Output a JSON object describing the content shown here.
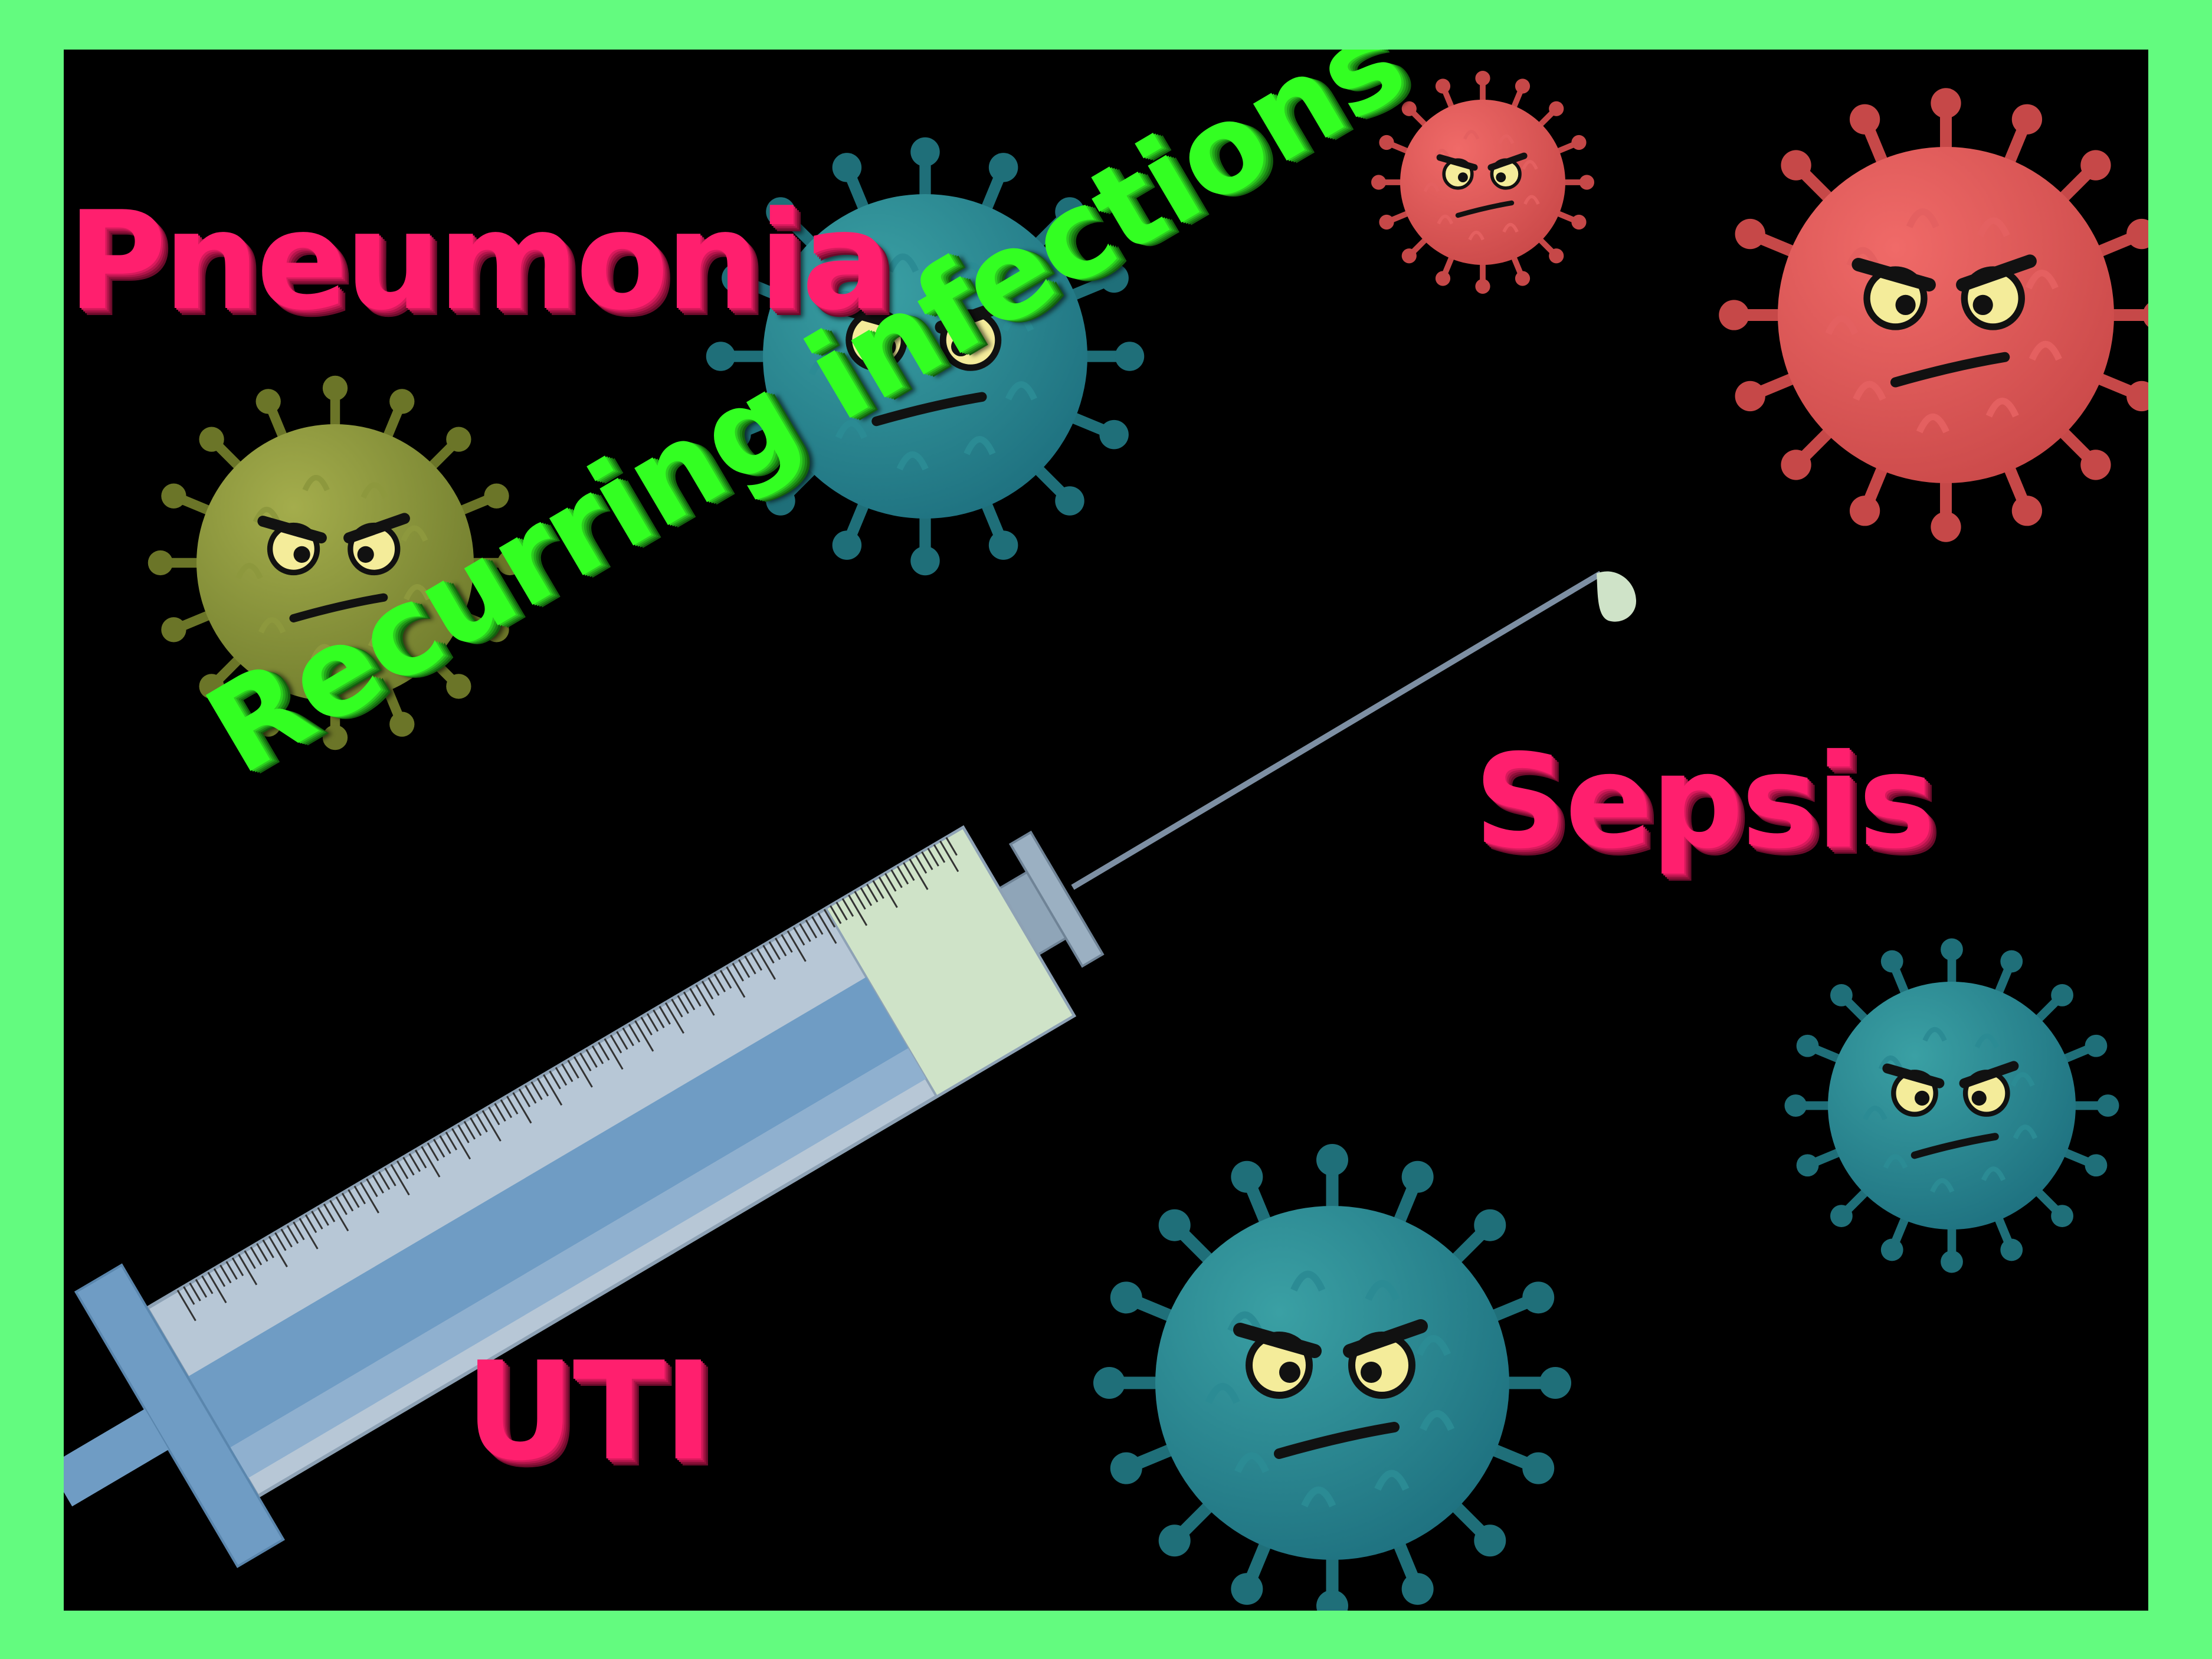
{
  "labels": {
    "pneumonia": "Pneumonia",
    "sepsis": "Sepsis",
    "uti": "UTI",
    "recurring": "Recurring infections"
  },
  "colors": {
    "background": "#63fb7f",
    "canvas": "#000000",
    "pink_text": "#ff1f6e",
    "green_text": "#33ff22",
    "virus_teal": "#2a8a92",
    "virus_red": "#e45656",
    "virus_olive": "#8f9a3f"
  },
  "icons": [
    "virus-icon",
    "syringe-icon"
  ]
}
